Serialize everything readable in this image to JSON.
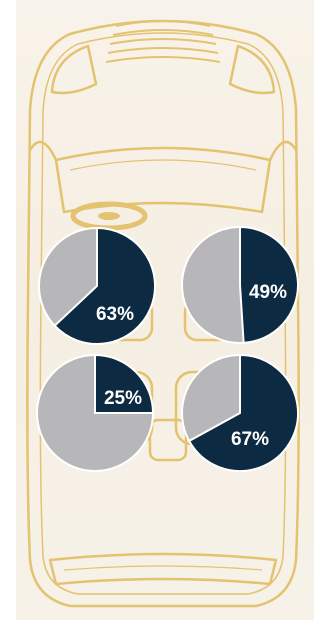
{
  "colors": {
    "highlight": "#0c2a42",
    "remainder": "#b7b7b9",
    "outline": "#e3c270",
    "background": "#f6f0e5"
  },
  "chart_data": [
    {
      "type": "pie",
      "position": "front-left",
      "values": [
        63,
        37
      ],
      "label": "63%"
    },
    {
      "type": "pie",
      "position": "front-right",
      "values": [
        49,
        51
      ],
      "label": "49%"
    },
    {
      "type": "pie",
      "position": "rear-left",
      "values": [
        25,
        75
      ],
      "label": "25%"
    },
    {
      "type": "pie",
      "position": "rear-right",
      "values": [
        67,
        33
      ],
      "label": "67%"
    }
  ]
}
